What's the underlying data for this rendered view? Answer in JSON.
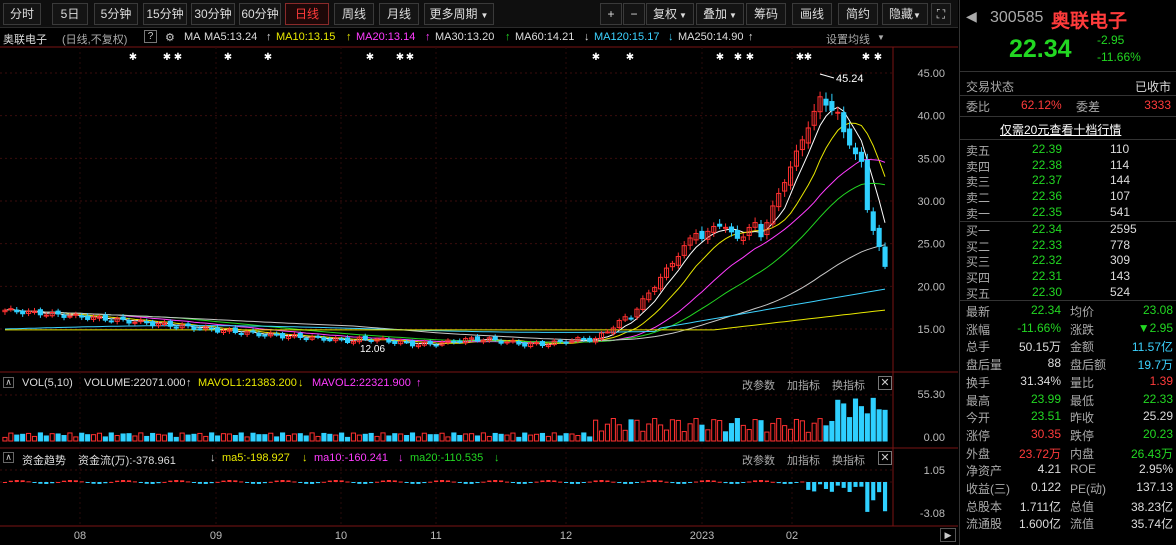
{
  "toolbar": {
    "tabs": [
      "分时",
      "5日",
      "5分钟",
      "15分钟",
      "30分钟",
      "60分钟",
      "日线",
      "周线",
      "月线",
      "更多周期"
    ],
    "active_tab": "日线",
    "tools": [
      "+",
      "−",
      "复权",
      "叠加",
      "筹码",
      "画线",
      "简约",
      "隐藏"
    ]
  },
  "chart": {
    "stock_name": "奥联电子",
    "period_label": "(日线,不复权)",
    "ma_label": "MA",
    "ma5": "MA5:13.24",
    "ma10": "MA10:13.15",
    "ma20": "MA20:13.14",
    "ma30": "MA30:13.20",
    "ma60": "MA60:14.21",
    "ma120": "MA120:15.17",
    "ma250": "MA250:14.90",
    "settings_label": "设置均线",
    "price_axis": [
      "45.00",
      "40.00",
      "35.00",
      "30.00",
      "25.00",
      "20.00",
      "15.00"
    ],
    "high_label": "45.24",
    "low_label": "12.06",
    "x_axis": [
      "08",
      "09",
      "10",
      "11",
      "12",
      "2023",
      "02"
    ]
  },
  "vol_panel": {
    "title": "VOL(5,10)",
    "volume": "VOLUME:22071.000",
    "mavol1": "MAVOL1:21383.200",
    "mavol2": "MAVOL2:22321.900",
    "buttons": [
      "改参数",
      "加指标",
      "换指标"
    ],
    "axis": [
      "55.30",
      "0.00"
    ]
  },
  "flow_panel": {
    "title": "资金趋势",
    "flow": "资金流(万):-378.961",
    "ma5": "ma5:-198.927",
    "ma10": "ma10:-160.241",
    "ma20": "ma20:-110.535",
    "buttons": [
      "改参数",
      "加指标",
      "换指标"
    ],
    "axis": [
      "1.05",
      "-3.08"
    ]
  },
  "quote": {
    "code": "300585",
    "name": "奥联电子",
    "price": "22.34",
    "change": "-2.95",
    "change_pct": "-11.66%",
    "status_label": "交易状态",
    "status_value": "已收市",
    "weibi_label": "委比",
    "weibi_value": "62.12%",
    "weicha_label": "委差",
    "weicha_value": "3333",
    "promo": "仅需20元查看十档行情",
    "asks": [
      {
        "label": "卖五",
        "price": "22.39",
        "vol": "110"
      },
      {
        "label": "卖四",
        "price": "22.38",
        "vol": "114"
      },
      {
        "label": "卖三",
        "price": "22.37",
        "vol": "144"
      },
      {
        "label": "卖二",
        "price": "22.36",
        "vol": "107"
      },
      {
        "label": "卖一",
        "price": "22.35",
        "vol": "541"
      }
    ],
    "bids": [
      {
        "label": "买一",
        "price": "22.34",
        "vol": "2595"
      },
      {
        "label": "买二",
        "price": "22.33",
        "vol": "778"
      },
      {
        "label": "买三",
        "price": "22.32",
        "vol": "309"
      },
      {
        "label": "买四",
        "price": "22.31",
        "vol": "143"
      },
      {
        "label": "买五",
        "price": "22.30",
        "vol": "524"
      }
    ],
    "stats": [
      {
        "l1": "最新",
        "v1": "22.34",
        "c1": "green",
        "l2": "均价",
        "v2": "23.08",
        "c2": "green"
      },
      {
        "l1": "涨幅",
        "v1": "-11.66%",
        "c1": "green",
        "l2": "涨跌",
        "v2": "▼2.95",
        "c2": "green"
      },
      {
        "l1": "总手",
        "v1": "50.15万",
        "c1": "white",
        "l2": "金额",
        "v2": "11.57亿",
        "c2": "cyan"
      },
      {
        "l1": "盘后量",
        "v1": "88",
        "c1": "white",
        "l2": "盘后额",
        "v2": "19.7万",
        "c2": "cyan"
      },
      {
        "l1": "换手",
        "v1": "31.34%",
        "c1": "white",
        "l2": "量比",
        "v2": "1.39",
        "c2": "red"
      },
      {
        "l1": "最高",
        "v1": "23.99",
        "c1": "green",
        "l2": "最低",
        "v2": "22.33",
        "c2": "green"
      },
      {
        "l1": "今开",
        "v1": "23.51",
        "c1": "green",
        "l2": "昨收",
        "v2": "25.29",
        "c2": "white"
      },
      {
        "l1": "涨停",
        "v1": "30.35",
        "c1": "red",
        "l2": "跌停",
        "v2": "20.23",
        "c2": "green"
      },
      {
        "l1": "外盘",
        "v1": "23.72万",
        "c1": "red",
        "l2": "内盘",
        "v2": "26.43万",
        "c2": "green"
      },
      {
        "l1": "净资产",
        "v1": "4.21",
        "c1": "white",
        "l2": "ROE",
        "v2": "2.95%",
        "c2": "white"
      },
      {
        "l1": "收益(三)",
        "v1": "0.122",
        "c1": "white",
        "l2": "PE(动)",
        "v2": "137.13",
        "c2": "white"
      },
      {
        "l1": "总股本",
        "v1": "1.711亿",
        "c1": "white",
        "l2": "总值",
        "v2": "38.23亿",
        "c2": "white"
      },
      {
        "l1": "流通股",
        "v1": "1.600亿",
        "c1": "white",
        "l2": "流值",
        "v2": "35.74亿",
        "c2": "white"
      }
    ]
  }
}
